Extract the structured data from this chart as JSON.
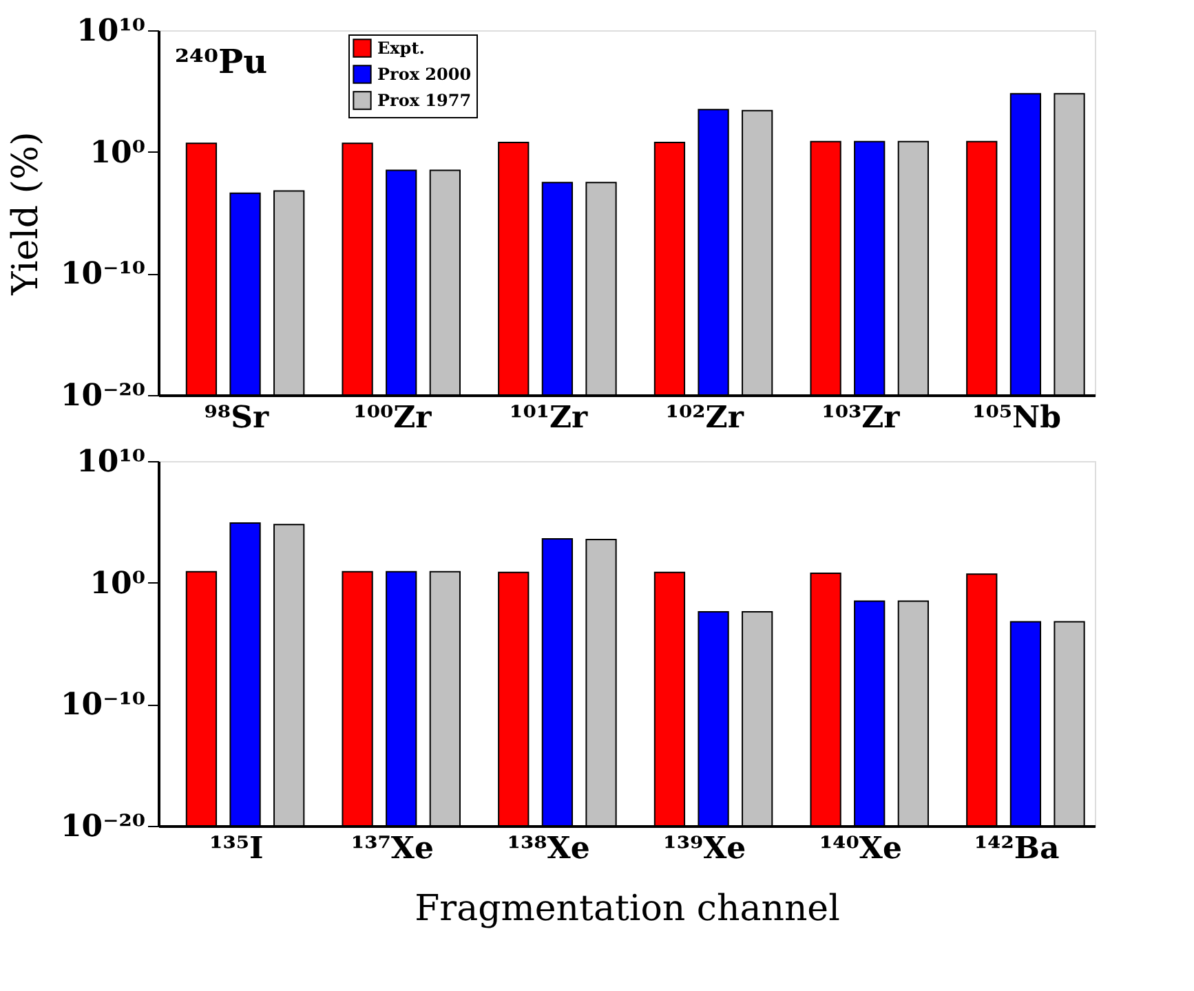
{
  "chart_data": [
    {
      "type": "bar",
      "annotations": [
        "²⁴⁰Pu"
      ],
      "ylabel": "Yield (%)",
      "categories": [
        "⁹⁸Sr",
        "¹⁰⁰Zr",
        "¹⁰¹Zr",
        "¹⁰²Zr",
        "¹⁰³Zr",
        "¹⁰⁵Nb"
      ],
      "series": [
        {
          "name": "Expt.",
          "color": "#ff0000",
          "values": [
            5,
            5,
            6,
            6,
            7,
            7
          ]
        },
        {
          "name": "Prox 2000",
          "color": "#0000ff",
          "values": [
            0.0004,
            0.03,
            0.003,
            3000,
            7,
            60000
          ]
        },
        {
          "name": "Prox 1977",
          "color": "#c0c0c0",
          "values": [
            0.0006,
            0.03,
            0.003,
            2500,
            7,
            60000
          ]
        }
      ],
      "log": true,
      "ylim": [
        1e-20,
        10000000000.0
      ],
      "yticks": [
        {
          "value": 1e-20,
          "label": "10⁻²⁰"
        },
        {
          "value": 1e-10,
          "label": "10⁻¹⁰"
        },
        {
          "value": 1,
          "label": "10⁰"
        },
        {
          "value": 10000000000.0,
          "label": "10¹⁰"
        }
      ],
      "legend": "top left",
      "grid": false
    },
    {
      "type": "bar",
      "xlabel": "Fragmentation channel",
      "categories": [
        "¹³⁵I",
        "¹³⁷Xe",
        "¹³⁸Xe",
        "¹³⁹Xe",
        "¹⁴⁰Xe",
        "¹⁴²Ba"
      ],
      "series": [
        {
          "color": "#ff0000",
          "values": [
            8,
            8,
            7,
            7,
            6,
            5
          ]
        },
        {
          "color": "#0000ff",
          "values": [
            80000,
            8,
            4000,
            0.004,
            0.03,
            0.0006
          ]
        },
        {
          "color": "#c0c0c0",
          "values": [
            60000,
            8,
            3500,
            0.004,
            0.03,
            0.0006
          ]
        }
      ],
      "log": true,
      "ylim": [
        1e-20,
        10000000000.0
      ],
      "yticks": [
        {
          "value": 1e-20,
          "label": "10⁻²⁰"
        },
        {
          "value": 1e-10,
          "label": "10⁻¹⁰"
        },
        {
          "value": 1,
          "label": "10⁰"
        },
        {
          "value": 10000000000.0,
          "label": "10¹⁰"
        }
      ],
      "legend": false,
      "grid": false
    }
  ]
}
